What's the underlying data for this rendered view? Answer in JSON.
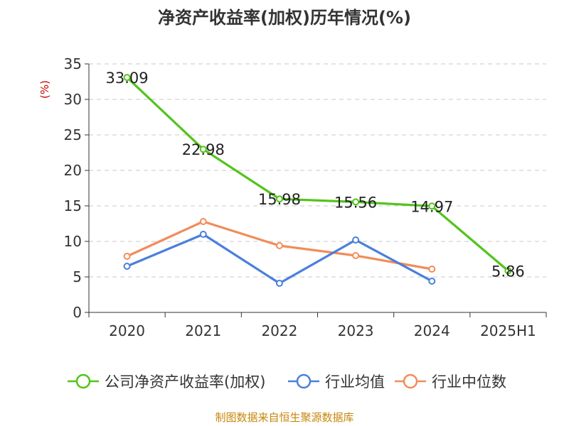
{
  "chart_data": {
    "type": "line",
    "title": "净资产收益率(加权)历年情况(%)",
    "ylabel": "(%)",
    "xlabel": "",
    "categories": [
      "2020",
      "2021",
      "2022",
      "2023",
      "2024",
      "2025H1"
    ],
    "ylim": [
      0,
      35
    ],
    "yticks": [
      0,
      5,
      10,
      15,
      20,
      25,
      30,
      35
    ],
    "grid": "horizontal-dashed",
    "legend_position": "bottom",
    "series": [
      {
        "name": "公司净资产收益率(加权)",
        "color": "#52c41a",
        "values": [
          33.09,
          22.98,
          15.98,
          15.56,
          14.97,
          5.86
        ],
        "labels": [
          "33.09",
          "22.98",
          "15.98",
          "15.56",
          "14.97",
          "5.86"
        ]
      },
      {
        "name": "行业均值",
        "color": "#4a7fdc",
        "values": [
          6.5,
          11.0,
          4.1,
          10.2,
          4.4,
          null
        ]
      },
      {
        "name": "行业中位数",
        "color": "#f28c5a",
        "values": [
          7.9,
          12.8,
          9.4,
          8.0,
          6.1,
          null
        ]
      }
    ]
  },
  "source_text": "制图数据来自恒生聚源数据库"
}
